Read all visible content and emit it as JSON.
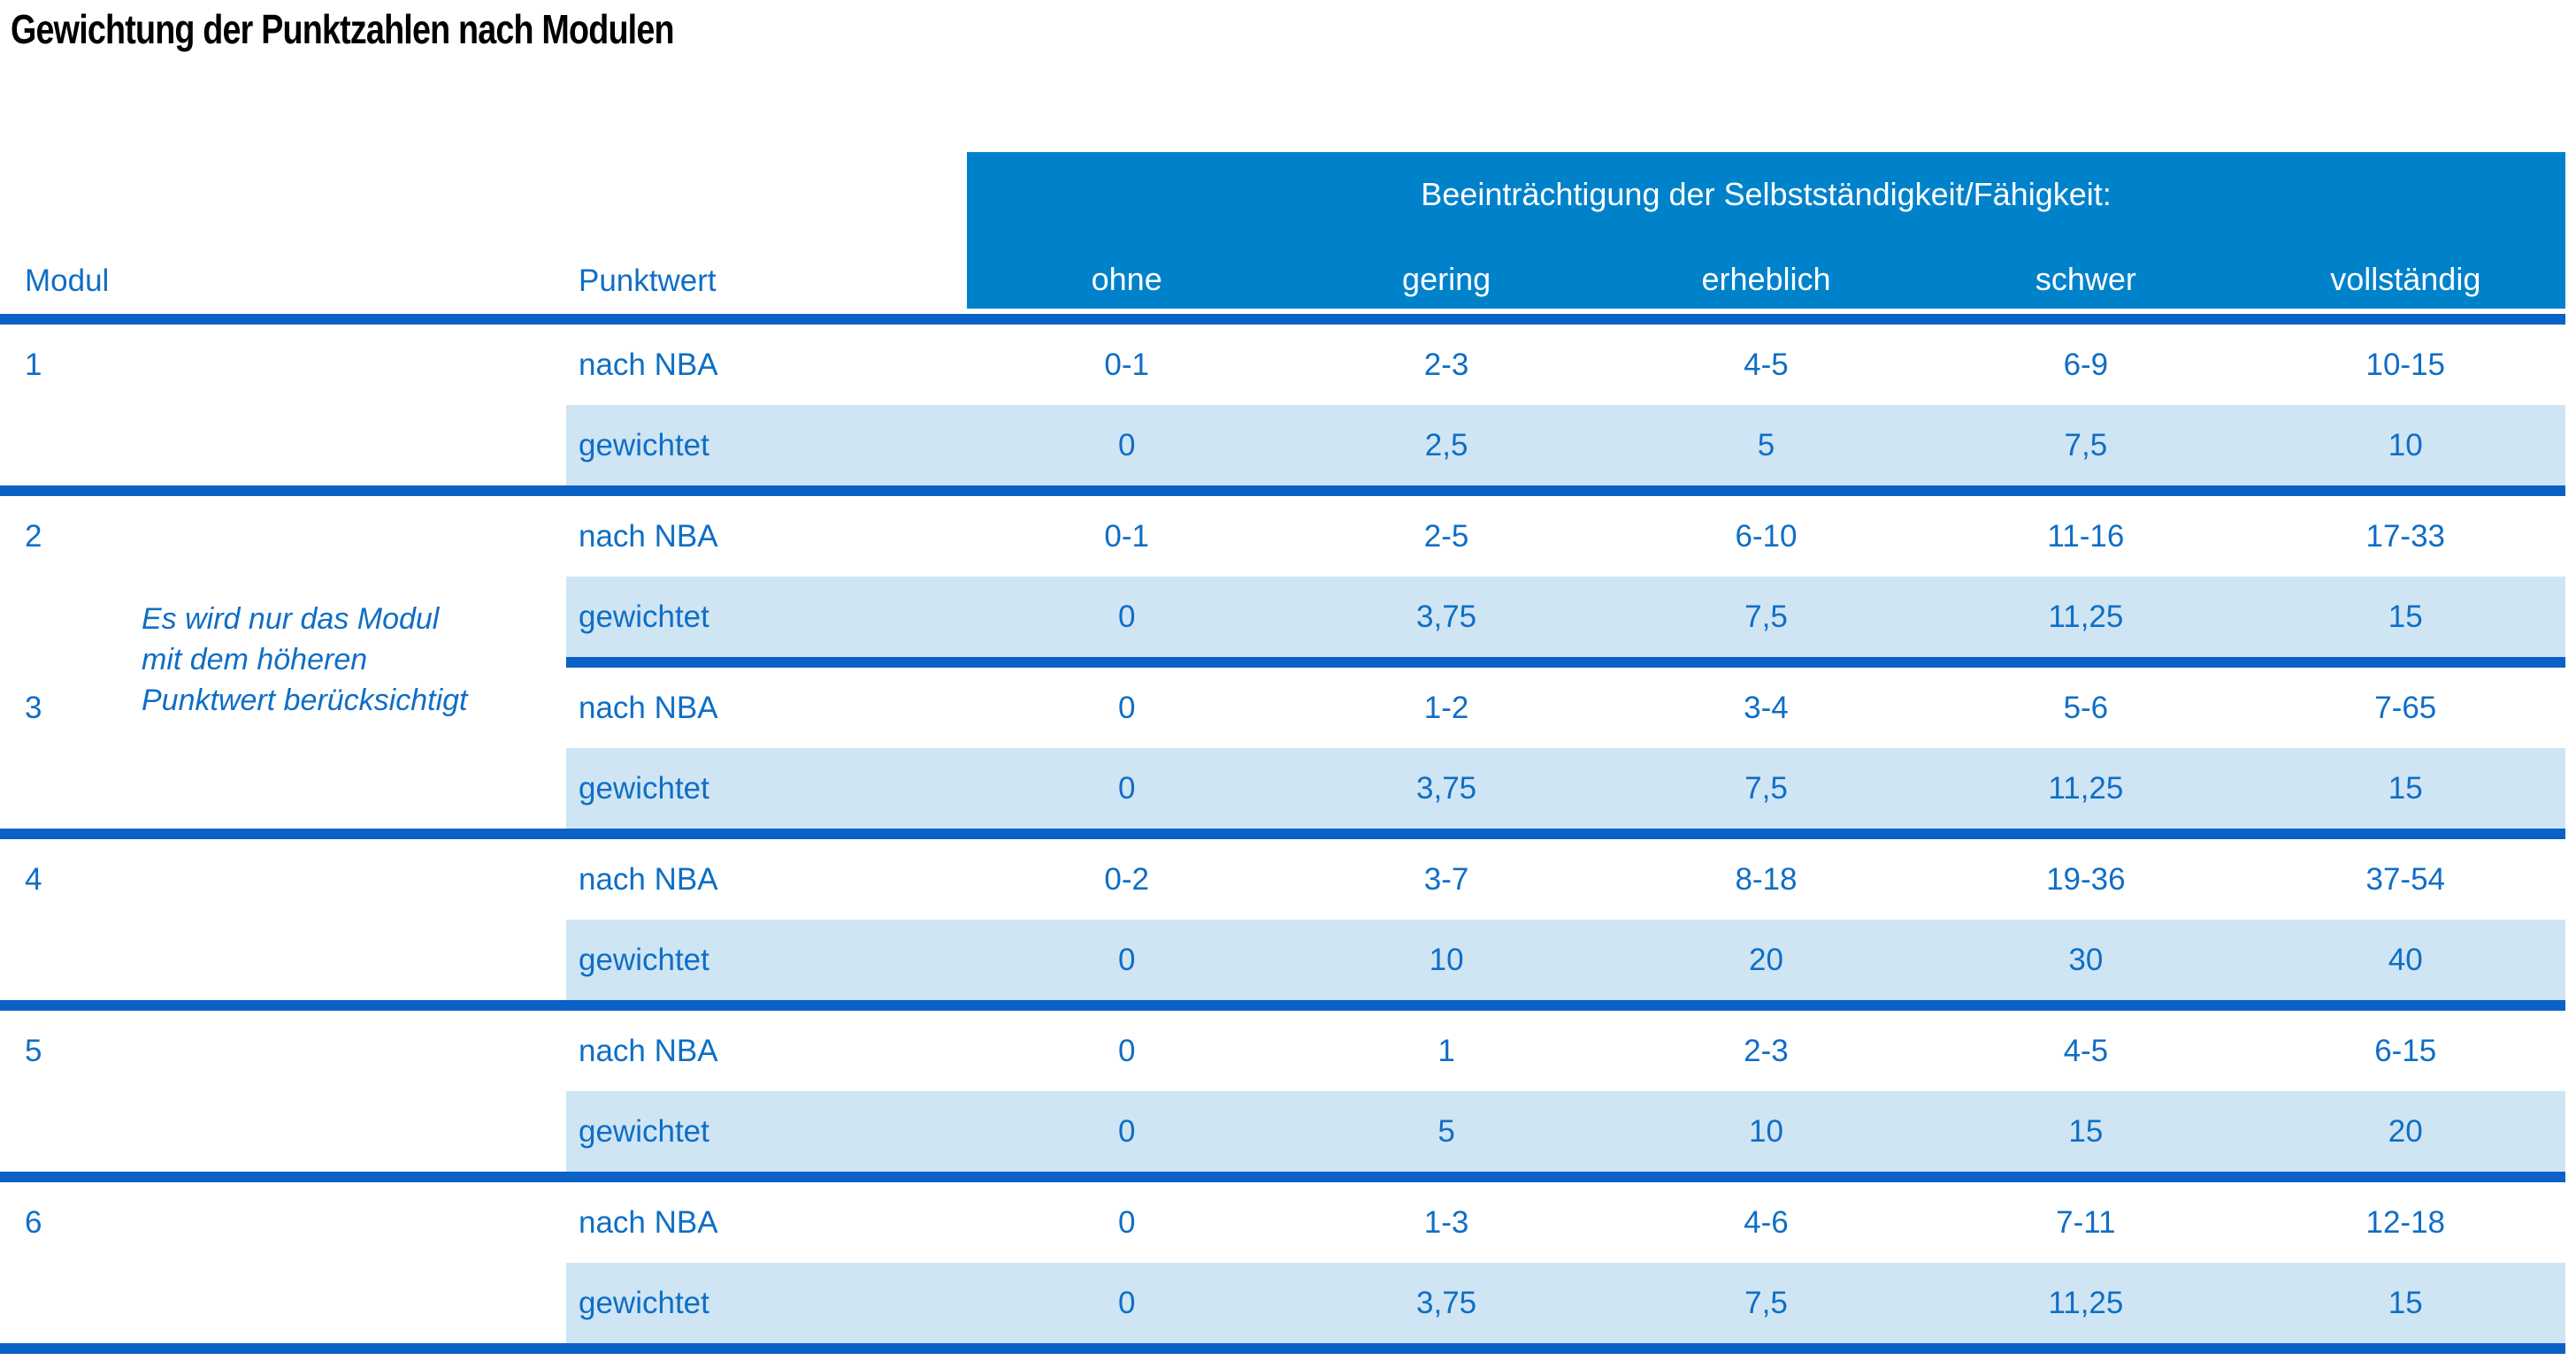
{
  "title": "Gewichtung der Punktzahlen nach Modulen",
  "table": {
    "col_modul": "Modul",
    "col_punktwert": "Punktwert",
    "group_header": "Beeinträchtigung der Selbstständigkeit/Fähigkeit:",
    "severity_levels": [
      "ohne",
      "gering",
      "erheblich",
      "schwer",
      "vollständig"
    ],
    "row_label_nba": "nach NBA",
    "row_label_weighted": "gewichtet",
    "note": {
      "line1": "Es wird nur das Modul",
      "line2": "mit dem höheren",
      "line3": "Punktwert berücksichtigt"
    },
    "modules": [
      {
        "id": "1",
        "nba": [
          "0-1",
          "2-3",
          "4-5",
          "6-9",
          "10-15"
        ],
        "weighted": [
          "0",
          "2,5",
          "5",
          "7,5",
          "10"
        ]
      },
      {
        "id": "2",
        "nba": [
          "0-1",
          "2-5",
          "6-10",
          "11-16",
          "17-33"
        ],
        "weighted": [
          "0",
          "3,75",
          "7,5",
          "11,25",
          "15"
        ]
      },
      {
        "id": "3",
        "nba": [
          "0",
          "1-2",
          "3-4",
          "5-6",
          "7-65"
        ],
        "weighted": [
          "0",
          "3,75",
          "7,5",
          "11,25",
          "15"
        ]
      },
      {
        "id": "4",
        "nba": [
          "0-2",
          "3-7",
          "8-18",
          "19-36",
          "37-54"
        ],
        "weighted": [
          "0",
          "10",
          "20",
          "30",
          "40"
        ]
      },
      {
        "id": "5",
        "nba": [
          "0",
          "1",
          "2-3",
          "4-5",
          "6-15"
        ],
        "weighted": [
          "0",
          "5",
          "10",
          "15",
          "20"
        ]
      },
      {
        "id": "6",
        "nba": [
          "0",
          "1-3",
          "4-6",
          "7-11",
          "12-18"
        ],
        "weighted": [
          "0",
          "3,75",
          "7,5",
          "11,25",
          "15"
        ]
      }
    ]
  },
  "colors": {
    "header_bg": "#0082CB",
    "separator": "#0B61C6",
    "weighted_band_bg": "#CFE5F4",
    "text_blue": "#0F6EC6",
    "header_text": "#FFFFFF",
    "title_color": "#000000"
  }
}
